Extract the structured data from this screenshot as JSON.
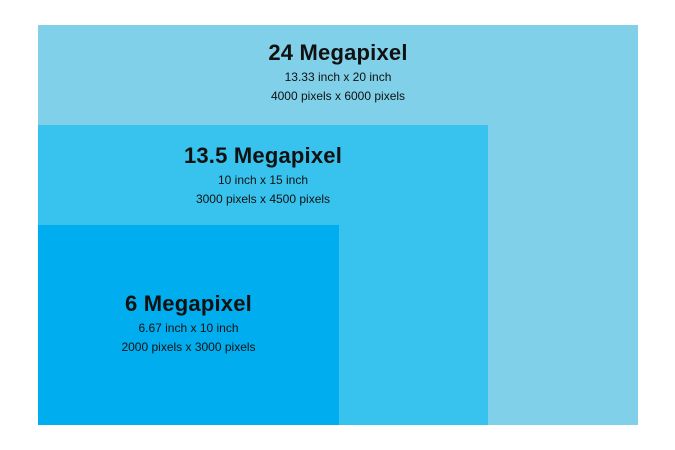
{
  "colors": {
    "background": "#ffffff",
    "box_24": "#7fd0e8",
    "box_13_5": "#37c3ee",
    "box_6": "#00adee",
    "text": "#111111"
  },
  "sizes": [
    {
      "title": "24 Megapixel",
      "print_size": "13.33 inch x 20 inch",
      "pixel_size": "4000 pixels x 6000 pixels"
    },
    {
      "title": "13.5 Megapixel",
      "print_size": "10 inch x 15 inch",
      "pixel_size": "3000 pixels x 4500 pixels"
    },
    {
      "title": "6 Megapixel",
      "print_size": "6.67 inch x 10 inch",
      "pixel_size": "2000 pixels x 3000 pixels"
    }
  ]
}
